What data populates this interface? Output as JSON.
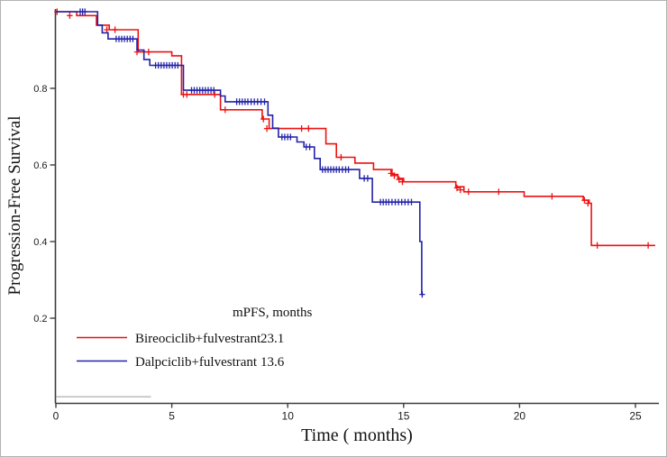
{
  "figure": {
    "background": "#ffffff",
    "border_color": "#b3b3b3",
    "axis_color": "#3d3d3d",
    "tick_label_color": "#1c1c1c"
  },
  "chart_data": {
    "type": "line",
    "subtype": "kaplan-meier-step-curves",
    "title": "",
    "xlabel": "Time ( months)",
    "ylabel": "Progression-Free Survival",
    "xlim": [
      0,
      26.2
    ],
    "ylim": [
      0,
      1.0
    ],
    "grid": false,
    "xtick_values": [
      0,
      5,
      10,
      15,
      20,
      25
    ],
    "xtick_labels": [
      "0",
      "5",
      "10",
      "15",
      "20",
      "25"
    ],
    "ytick_values": [
      0.2,
      0.4,
      0.6,
      0.8
    ],
    "ytick_labels": [
      "0.2",
      "0.4",
      "0.6",
      "0.8"
    ],
    "legend": {
      "position": "inside-bottom-left",
      "header": "mPFS, months",
      "entries": [
        {
          "label": "Bireociclib+fulvestrant",
          "median": "23.1",
          "color": "#ee1111"
        },
        {
          "label": "Dalpciclib+fulvestrant",
          "median": "13.6",
          "color": "#2222aa"
        }
      ]
    },
    "baseline_segment": {
      "x1": 0,
      "x2": 4.1,
      "y": -0.005,
      "color": "#9a9a9a"
    },
    "series": [
      {
        "name": "Bireociclib+fulvestrant",
        "color": "#ee1111",
        "median_months": 23.1,
        "end_time": 25.85,
        "steps": [
          [
            0,
            1.0
          ],
          [
            0.9,
            0.99
          ],
          [
            1.75,
            0.965
          ],
          [
            2.3,
            0.953
          ],
          [
            3.55,
            0.895
          ],
          [
            5.0,
            0.885
          ],
          [
            5.42,
            0.784
          ],
          [
            7.1,
            0.744
          ],
          [
            8.9,
            0.72
          ],
          [
            9.2,
            0.695
          ],
          [
            11.65,
            0.655
          ],
          [
            12.1,
            0.62
          ],
          [
            12.9,
            0.605
          ],
          [
            13.7,
            0.588
          ],
          [
            14.5,
            0.575
          ],
          [
            14.75,
            0.565
          ],
          [
            15.0,
            0.556
          ],
          [
            17.25,
            0.543
          ],
          [
            17.6,
            0.53
          ],
          [
            20.2,
            0.518
          ],
          [
            22.75,
            0.508
          ],
          [
            23.0,
            0.5
          ],
          [
            23.1,
            0.39
          ]
        ],
        "censor_marks": [
          [
            0.05,
            1.0
          ],
          [
            0.6,
            0.99
          ],
          [
            2.2,
            0.953
          ],
          [
            2.55,
            0.953
          ],
          [
            3.5,
            0.895
          ],
          [
            4.0,
            0.895
          ],
          [
            5.5,
            0.784
          ],
          [
            5.65,
            0.784
          ],
          [
            6.85,
            0.784
          ],
          [
            7.3,
            0.744
          ],
          [
            8.95,
            0.72
          ],
          [
            9.1,
            0.695
          ],
          [
            10.6,
            0.695
          ],
          [
            10.9,
            0.695
          ],
          [
            12.3,
            0.62
          ],
          [
            14.45,
            0.578
          ],
          [
            14.6,
            0.572
          ],
          [
            14.8,
            0.562
          ],
          [
            14.95,
            0.556
          ],
          [
            17.3,
            0.54
          ],
          [
            17.45,
            0.535
          ],
          [
            17.8,
            0.53
          ],
          [
            19.1,
            0.53
          ],
          [
            21.4,
            0.518
          ],
          [
            22.8,
            0.508
          ],
          [
            22.95,
            0.5
          ],
          [
            23.35,
            0.39
          ],
          [
            25.55,
            0.39
          ]
        ]
      },
      {
        "name": "Dalpciclib+fulvestrant",
        "color": "#2222aa",
        "median_months": 13.6,
        "end_time": 15.85,
        "steps": [
          [
            0,
            1.0
          ],
          [
            1.8,
            0.965
          ],
          [
            2.0,
            0.945
          ],
          [
            2.25,
            0.929
          ],
          [
            3.5,
            0.9
          ],
          [
            3.8,
            0.875
          ],
          [
            4.05,
            0.86
          ],
          [
            5.5,
            0.795
          ],
          [
            7.1,
            0.78
          ],
          [
            7.3,
            0.765
          ],
          [
            9.15,
            0.73
          ],
          [
            9.35,
            0.696
          ],
          [
            9.6,
            0.673
          ],
          [
            10.4,
            0.66
          ],
          [
            10.7,
            0.647
          ],
          [
            11.15,
            0.617
          ],
          [
            11.4,
            0.588
          ],
          [
            13.1,
            0.565
          ],
          [
            13.65,
            0.503
          ],
          [
            15.7,
            0.4
          ],
          [
            15.78,
            0.262
          ]
        ],
        "censor_marks": [
          [
            1.05,
            1.0
          ],
          [
            1.15,
            1.0
          ],
          [
            1.25,
            1.0
          ],
          [
            2.6,
            0.929
          ],
          [
            2.72,
            0.929
          ],
          [
            2.84,
            0.929
          ],
          [
            2.96,
            0.929
          ],
          [
            3.08,
            0.929
          ],
          [
            3.2,
            0.929
          ],
          [
            3.32,
            0.929
          ],
          [
            4.3,
            0.86
          ],
          [
            4.42,
            0.86
          ],
          [
            4.54,
            0.86
          ],
          [
            4.66,
            0.86
          ],
          [
            4.78,
            0.86
          ],
          [
            4.9,
            0.86
          ],
          [
            5.02,
            0.86
          ],
          [
            5.14,
            0.86
          ],
          [
            5.26,
            0.86
          ],
          [
            5.85,
            0.795
          ],
          [
            5.97,
            0.795
          ],
          [
            6.09,
            0.795
          ],
          [
            6.21,
            0.795
          ],
          [
            6.33,
            0.795
          ],
          [
            6.45,
            0.795
          ],
          [
            6.57,
            0.795
          ],
          [
            6.69,
            0.795
          ],
          [
            6.81,
            0.795
          ],
          [
            7.8,
            0.765
          ],
          [
            7.92,
            0.765
          ],
          [
            8.04,
            0.765
          ],
          [
            8.16,
            0.765
          ],
          [
            8.28,
            0.765
          ],
          [
            8.42,
            0.765
          ],
          [
            8.56,
            0.765
          ],
          [
            8.7,
            0.765
          ],
          [
            8.85,
            0.765
          ],
          [
            9.0,
            0.765
          ],
          [
            9.75,
            0.673
          ],
          [
            9.87,
            0.673
          ],
          [
            10.0,
            0.673
          ],
          [
            10.12,
            0.673
          ],
          [
            10.8,
            0.647
          ],
          [
            10.95,
            0.647
          ],
          [
            11.5,
            0.588
          ],
          [
            11.62,
            0.588
          ],
          [
            11.74,
            0.588
          ],
          [
            11.86,
            0.588
          ],
          [
            11.98,
            0.588
          ],
          [
            12.1,
            0.588
          ],
          [
            12.22,
            0.588
          ],
          [
            12.36,
            0.588
          ],
          [
            12.5,
            0.588
          ],
          [
            12.62,
            0.588
          ],
          [
            13.3,
            0.565
          ],
          [
            13.45,
            0.565
          ],
          [
            14.0,
            0.503
          ],
          [
            14.12,
            0.503
          ],
          [
            14.24,
            0.503
          ],
          [
            14.36,
            0.503
          ],
          [
            14.5,
            0.503
          ],
          [
            14.64,
            0.503
          ],
          [
            14.78,
            0.503
          ],
          [
            14.92,
            0.503
          ],
          [
            15.06,
            0.503
          ],
          [
            15.2,
            0.503
          ],
          [
            15.34,
            0.503
          ],
          [
            15.8,
            0.262
          ]
        ]
      }
    ]
  }
}
